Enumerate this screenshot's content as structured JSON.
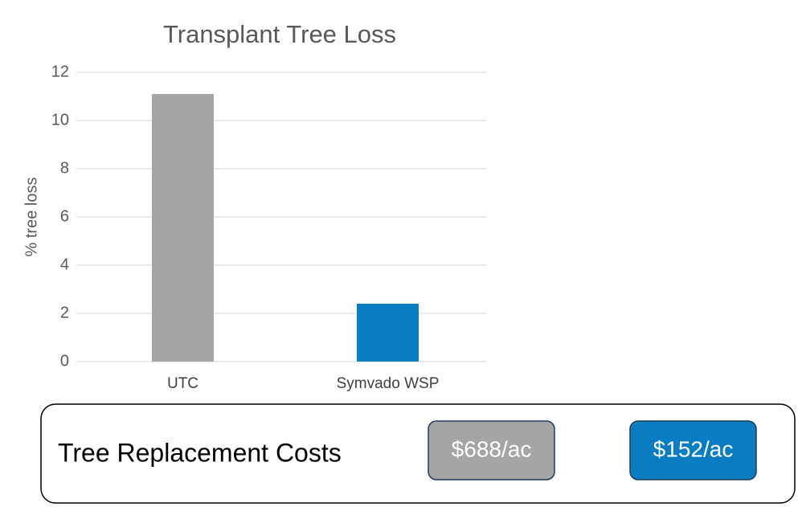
{
  "chart_data": {
    "type": "bar",
    "title": "Transplant Tree Loss",
    "y_label": "% tree loss",
    "categories": [
      "UTC",
      "Symvado WSP"
    ],
    "values": [
      11.1,
      2.4
    ],
    "colors": [
      "#a5a5a5",
      "#0a7cc1"
    ],
    "ylim": [
      0,
      12
    ],
    "yticks": [
      0,
      2,
      4,
      6,
      8,
      10,
      12
    ],
    "grid": true
  },
  "cost_box": {
    "title": "Tree Replacement Costs",
    "costs": [
      "$688/ac",
      "$152/ac"
    ]
  }
}
